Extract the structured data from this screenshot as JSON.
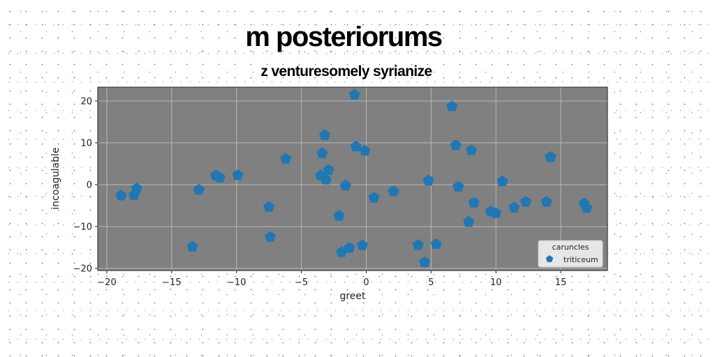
{
  "chart_data": {
    "type": "scatter",
    "title": "m posteriorums",
    "subtitle": "z venturesomely syrianize",
    "xlabel": "greet",
    "ylabel": "incoagulable",
    "xlim": [
      -20.7,
      18.6
    ],
    "ylim": [
      -20.5,
      23.3
    ],
    "xticks": [
      -20,
      -15,
      -10,
      -5,
      0,
      5,
      10,
      15
    ],
    "yticks": [
      -20,
      -10,
      0,
      10,
      20
    ],
    "grid": true,
    "plot_background": "#808080",
    "legend": {
      "title": "caruncles",
      "placement": "lower-right"
    },
    "series": [
      {
        "name": "triticeum",
        "marker": "pentagon",
        "color": "#1f77b4",
        "points": [
          {
            "x": -18.9,
            "y": -2.6
          },
          {
            "x": -17.7,
            "y": -0.9
          },
          {
            "x": -17.9,
            "y": -2.5
          },
          {
            "x": -13.4,
            "y": -14.8
          },
          {
            "x": -12.9,
            "y": -1.2
          },
          {
            "x": -11.6,
            "y": 2.2
          },
          {
            "x": -11.3,
            "y": 1.7
          },
          {
            "x": -9.9,
            "y": 2.3
          },
          {
            "x": -7.5,
            "y": -5.3
          },
          {
            "x": -7.4,
            "y": -12.5
          },
          {
            "x": -6.2,
            "y": 6.2
          },
          {
            "x": -3.4,
            "y": 7.5
          },
          {
            "x": -3.2,
            "y": 11.8
          },
          {
            "x": -3.5,
            "y": 2.2
          },
          {
            "x": -3.1,
            "y": 1.2
          },
          {
            "x": -2.9,
            "y": 3.5
          },
          {
            "x": -2.1,
            "y": -7.4
          },
          {
            "x": -1.9,
            "y": -16.1
          },
          {
            "x": -1.6,
            "y": -0.2
          },
          {
            "x": -1.3,
            "y": -15.1
          },
          {
            "x": -0.9,
            "y": 21.5
          },
          {
            "x": -0.8,
            "y": 9.1
          },
          {
            "x": -0.1,
            "y": 8.1
          },
          {
            "x": -0.3,
            "y": -14.5
          },
          {
            "x": 0.6,
            "y": -3.1
          },
          {
            "x": 2.1,
            "y": -1.6
          },
          {
            "x": 4.0,
            "y": -14.4
          },
          {
            "x": 4.5,
            "y": -18.5
          },
          {
            "x": 4.8,
            "y": 1.0
          },
          {
            "x": 5.4,
            "y": -14.2
          },
          {
            "x": 6.6,
            "y": 18.7
          },
          {
            "x": 6.9,
            "y": 9.4
          },
          {
            "x": 7.1,
            "y": -0.5
          },
          {
            "x": 7.9,
            "y": -8.9
          },
          {
            "x": 8.1,
            "y": 8.2
          },
          {
            "x": 8.3,
            "y": -4.3
          },
          {
            "x": 9.6,
            "y": -6.4
          },
          {
            "x": 10.0,
            "y": -6.8
          },
          {
            "x": 10.5,
            "y": 0.8
          },
          {
            "x": 11.4,
            "y": -5.5
          },
          {
            "x": 12.3,
            "y": -4.1
          },
          {
            "x": 13.9,
            "y": -4.1
          },
          {
            "x": 14.2,
            "y": 6.6
          },
          {
            "x": 16.8,
            "y": -4.5
          },
          {
            "x": 17.0,
            "y": -5.6
          }
        ]
      }
    ]
  }
}
